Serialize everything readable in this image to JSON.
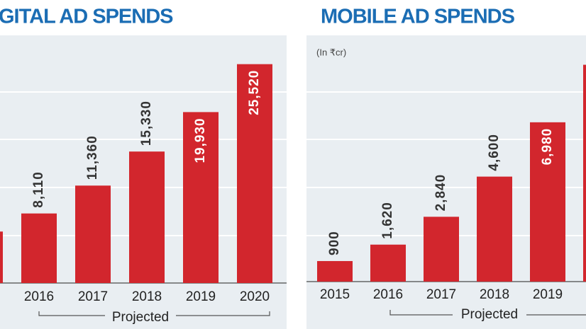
{
  "chart_data": [
    {
      "type": "bar",
      "title": "GITAL AD SPENDS",
      "annotation": "Projected",
      "categories": [
        null,
        "2016",
        "2017",
        "2018",
        "2019",
        "2020"
      ],
      "values": [
        6000,
        8110,
        11360,
        15330,
        19930,
        25520
      ],
      "value_labels": [
        null,
        "8,110",
        "11,360",
        "15,330",
        "19,930",
        "25,520"
      ],
      "color": "#d2262d",
      "ylim": [
        0,
        33000
      ]
    },
    {
      "type": "bar",
      "title": "MOBILE AD SPENDS",
      "subtitle": "(In ₹cr)",
      "annotation": "Projected",
      "categories": [
        "2015",
        "2016",
        "2017",
        "2018",
        "2019",
        null
      ],
      "values": [
        900,
        1620,
        2840,
        4600,
        6980,
        9500
      ],
      "value_labels": [
        "900",
        "1,620",
        "2,840",
        "4,600",
        "6,980",
        null
      ],
      "color": "#d2262d",
      "ylim": [
        0,
        12400
      ]
    }
  ]
}
